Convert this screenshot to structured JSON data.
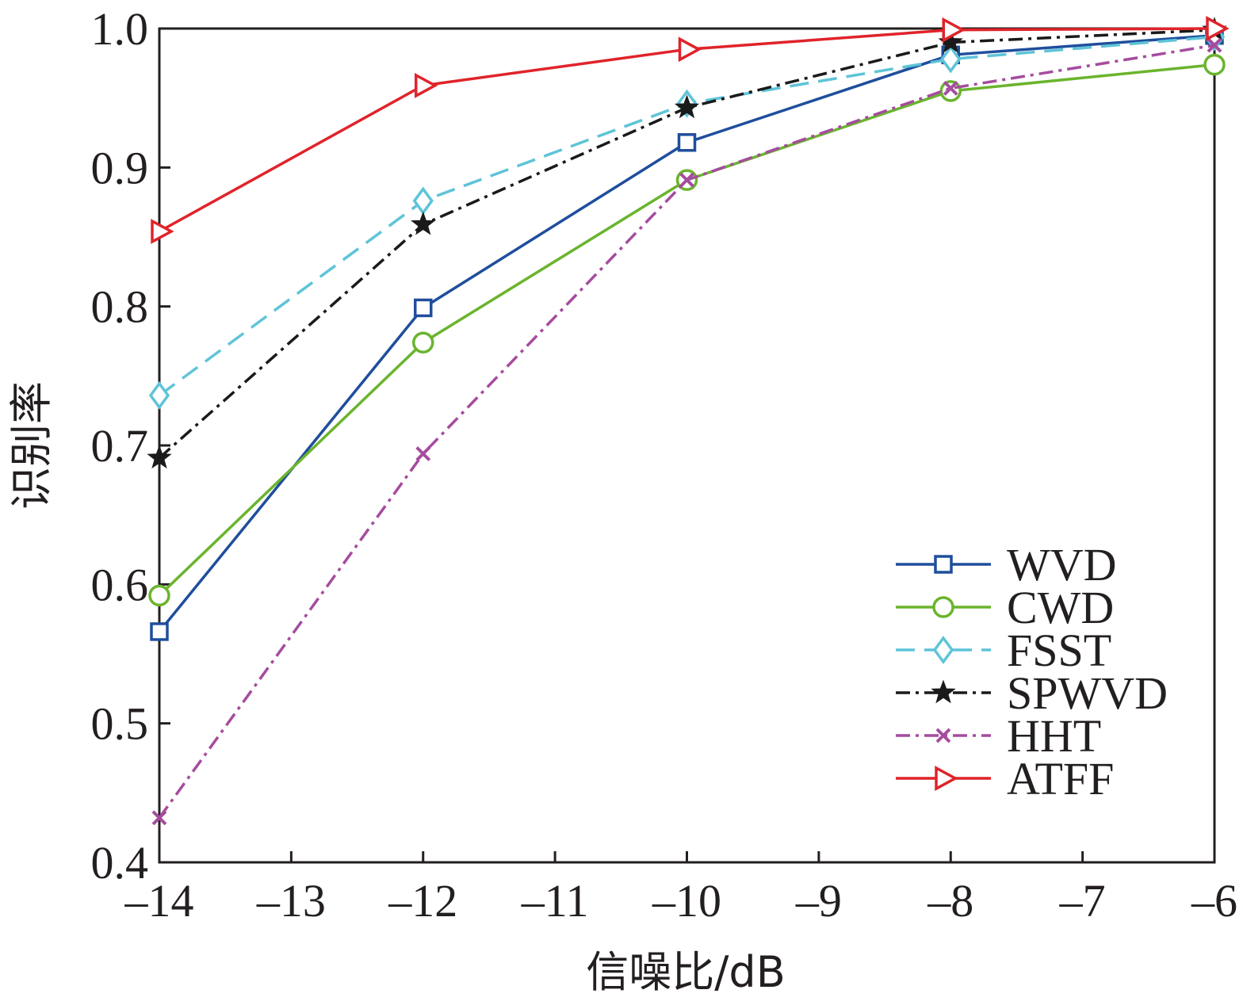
{
  "chart_data": {
    "type": "line",
    "title": "",
    "xlabel": "信噪比/dB",
    "ylabel": "识别率",
    "x": [
      -14,
      -12,
      -10,
      -8,
      -6
    ],
    "xlim": [
      -14,
      -6
    ],
    "ylim": [
      0.4,
      1.0
    ],
    "xticks": [
      -14,
      -13,
      -12,
      -11,
      -10,
      -9,
      -8,
      -7,
      -6
    ],
    "xtick_labels": [
      "–14",
      "–13",
      "–12",
      "–11",
      "–10",
      "–9",
      "–8",
      "–7",
      "–6"
    ],
    "yticks": [
      0.4,
      0.5,
      0.6,
      0.7,
      0.8,
      0.9,
      1.0
    ],
    "ytick_labels": [
      "0.4",
      "0.5",
      "0.6",
      "0.7",
      "0.8",
      "0.9",
      "1.0"
    ],
    "grid": false,
    "legend_position": "bottom-right",
    "series": [
      {
        "name": "WVD",
        "values": [
          0.566,
          0.799,
          0.918,
          0.981,
          0.995
        ],
        "color": "#1f4e9c",
        "marker": "square",
        "dash": "solid"
      },
      {
        "name": "CWD",
        "values": [
          0.592,
          0.774,
          0.891,
          0.955,
          0.974
        ],
        "color": "#6ab42d",
        "marker": "circle",
        "dash": "solid"
      },
      {
        "name": "FSST",
        "values": [
          0.736,
          0.876,
          0.946,
          0.978,
          0.994
        ],
        "color": "#5ec4d8",
        "marker": "diamond",
        "dash": "dashed"
      },
      {
        "name": "SPWVD",
        "values": [
          0.691,
          0.859,
          0.943,
          0.99,
          0.999
        ],
        "color": "#1a1a1a",
        "marker": "star",
        "dash": "dashdot"
      },
      {
        "name": "HHT",
        "values": [
          0.432,
          0.694,
          0.891,
          0.957,
          0.988
        ],
        "color": "#a54c9e",
        "marker": "x",
        "dash": "dashdot"
      },
      {
        "name": "ATFF",
        "values": [
          0.854,
          0.959,
          0.985,
          0.999,
          1.0
        ],
        "color": "#e0232a",
        "marker": "triangle",
        "dash": "solid"
      }
    ]
  }
}
